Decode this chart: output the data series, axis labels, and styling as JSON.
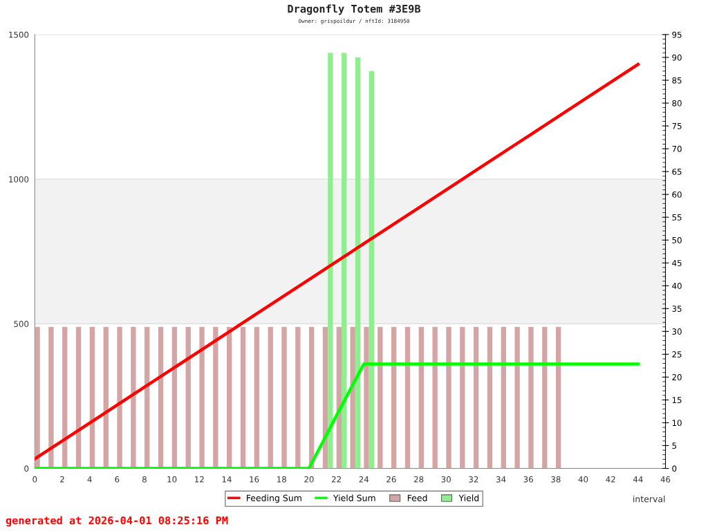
{
  "chart_data": {
    "type": "bar",
    "title": "Dragonfly Totem #3E9B",
    "subtitle": "Owner: grispoildur / nftId: 3184950",
    "xlabel": "interval",
    "annotations": [
      "generated at 2026-04-01 08:25:16 PM"
    ],
    "xlim": [
      0,
      46
    ],
    "xticks": [
      0,
      2,
      4,
      6,
      8,
      10,
      12,
      14,
      16,
      18,
      20,
      22,
      24,
      26,
      28,
      30,
      32,
      34,
      36,
      38,
      40,
      42,
      44,
      46
    ],
    "ylim": [
      0,
      1500
    ],
    "yticks": [
      0,
      500,
      1000,
      1500
    ],
    "y2lim": [
      0,
      95
    ],
    "y2ticks": [
      0,
      5,
      10,
      15,
      20,
      25,
      30,
      35,
      40,
      45,
      50,
      55,
      60,
      65,
      70,
      75,
      80,
      85,
      90,
      95
    ],
    "grid": "y",
    "legend": "bottom",
    "bands": [
      {
        "axis": "y",
        "from": 500,
        "to": 1000,
        "color": "#f2f2f2"
      }
    ],
    "series": [
      {
        "name": "Feed",
        "axis": "y2",
        "color": "#d4a5a5",
        "x": [
          0.19,
          1.19,
          2.19,
          3.19,
          4.19,
          5.19,
          6.19,
          7.19,
          8.19,
          9.19,
          10.19,
          11.19,
          12.19,
          13.19,
          14.19,
          15.19,
          16.19,
          17.19,
          18.19,
          19.19,
          20.19,
          21.19,
          22.19,
          23.19,
          24.19,
          25.19,
          26.19,
          27.19,
          28.19,
          29.19,
          30.19,
          31.19,
          32.19,
          33.19,
          34.19,
          35.19,
          36.19,
          37.19,
          38.19
        ],
        "values": [
          31,
          31,
          31,
          31,
          31,
          31,
          31,
          31,
          31,
          31,
          31,
          31,
          31,
          31,
          31,
          31,
          31,
          31,
          31,
          31,
          31,
          31,
          31,
          31,
          31,
          31,
          31,
          31,
          31,
          31,
          31,
          31,
          31,
          31,
          31,
          31,
          31,
          31,
          31
        ]
      },
      {
        "name": "Yield",
        "axis": "y2",
        "color": "#90ee90",
        "x": [
          21.56,
          22.56,
          23.56,
          24.56
        ],
        "values": [
          91,
          91,
          90,
          87
        ]
      },
      {
        "name": "Feeding Sum",
        "type": "line",
        "color": "#ff0000",
        "x": [
          0,
          4,
          8,
          12,
          16,
          20,
          24,
          28,
          32,
          36,
          40,
          44
        ],
        "values": [
          33,
          157,
          281,
          405,
          529,
          653,
          777,
          901,
          1025,
          1149,
          1273,
          1397
        ]
      },
      {
        "name": "Yield Sum",
        "type": "line",
        "color": "#00ff00",
        "x": [
          0,
          20,
          21,
          22,
          23,
          24,
          44
        ],
        "values": [
          0,
          0,
          91,
          182,
          272,
          361,
          361
        ]
      }
    ]
  }
}
